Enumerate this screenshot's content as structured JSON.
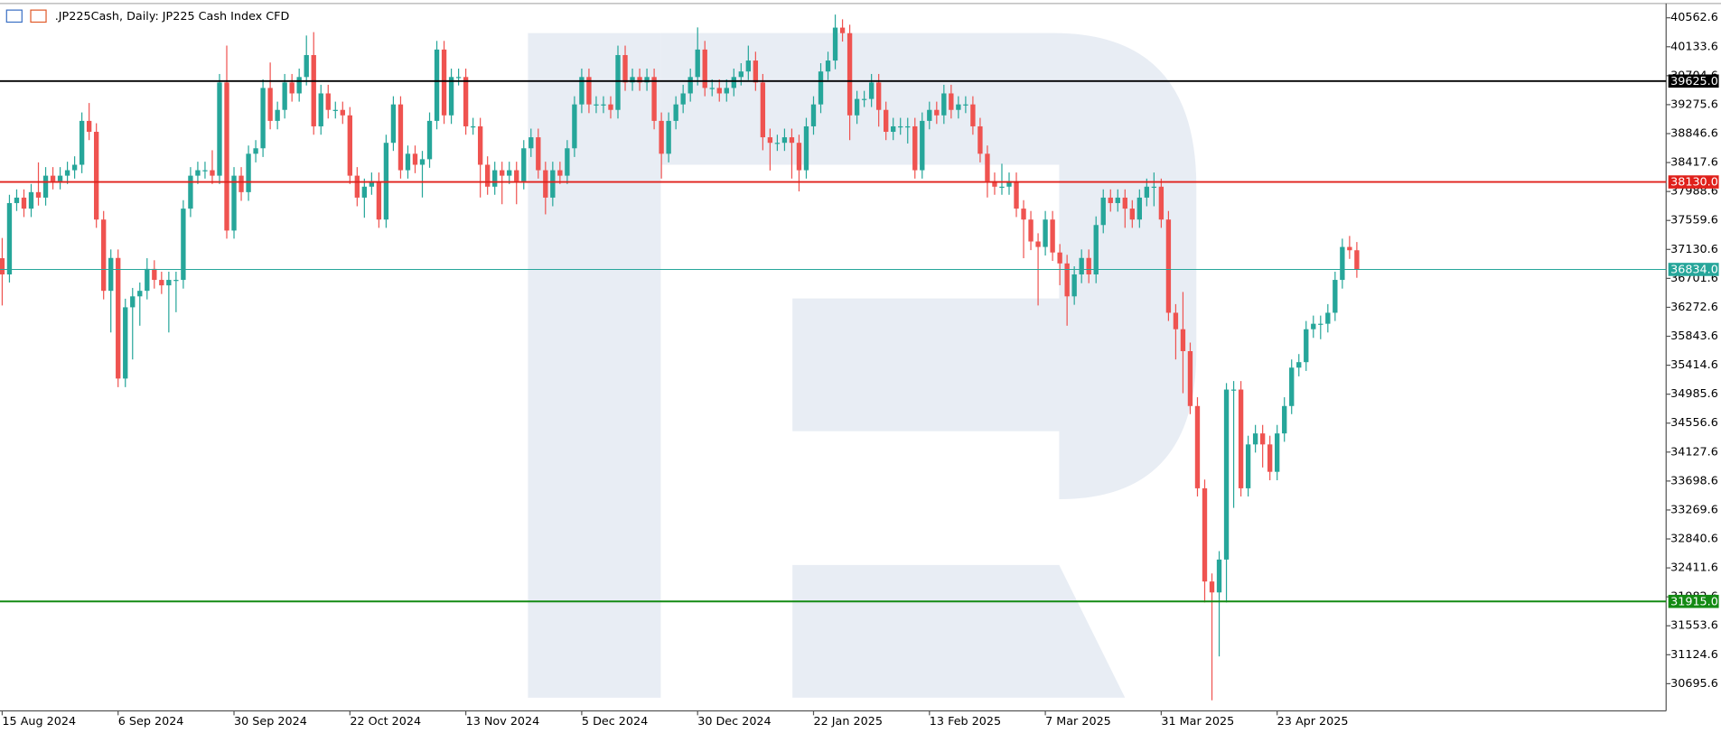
{
  "chart_data": {
    "type": "candlestick",
    "title": ".JP225Cash, Daily:  JP225 Cash Index CFD",
    "categories": [
      "15 Aug 2024",
      null,
      null,
      null,
      null,
      null,
      null,
      null,
      null,
      null,
      null,
      null,
      null,
      null,
      null,
      null,
      "6 Sep 2024",
      null,
      null,
      null,
      null,
      null,
      null,
      null,
      null,
      null,
      null,
      null,
      null,
      null,
      null,
      null,
      "30 Sep 2024",
      null,
      null,
      null,
      null,
      null,
      null,
      null,
      null,
      null,
      null,
      null,
      null,
      null,
      null,
      null,
      "22 Oct 2024",
      null,
      null,
      null,
      null,
      null,
      null,
      null,
      null,
      null,
      null,
      null,
      null,
      null,
      null,
      null,
      "13 Nov 2024",
      null,
      null,
      null,
      null,
      null,
      null,
      null,
      null,
      null,
      null,
      null,
      null,
      null,
      null,
      null,
      "5 Dec 2024",
      null,
      null,
      null,
      null,
      null,
      null,
      null,
      null,
      null,
      null,
      null,
      null,
      null,
      null,
      null,
      "30 Dec 2024",
      null,
      null,
      null,
      null,
      null,
      null,
      null,
      null,
      null,
      null,
      null,
      null,
      null,
      null,
      null,
      "22 Jan 2025",
      null,
      null,
      null,
      null,
      null,
      null,
      null,
      null,
      null,
      null,
      null,
      null,
      null,
      null,
      null,
      "13 Feb 2025",
      null,
      null,
      null,
      null,
      null,
      null,
      null,
      null,
      null,
      null,
      null,
      null,
      null,
      null,
      null,
      "7 Mar 2025",
      null,
      null,
      null,
      null,
      null,
      null,
      null,
      null,
      null,
      null,
      null,
      null,
      null,
      null,
      null,
      "31 Mar 2025",
      null,
      null,
      null,
      null,
      null,
      null,
      null,
      null,
      null,
      null,
      null,
      null,
      null,
      null,
      null,
      "23 Apr 2025",
      null,
      null,
      null,
      null,
      null,
      null,
      null,
      null,
      null,
      null,
      null
    ],
    "open": [
      37000,
      36760,
      37817,
      37898,
      37735,
      37979,
      37898,
      38223,
      38142,
      38223,
      38304,
      38385,
      39035,
      38873,
      37573,
      36517,
      37004,
      35217,
      36273,
      36435,
      36517,
      36842,
      36679,
      36598,
      36679,
      36679,
      37735,
      38223,
      38304,
      38304,
      38223,
      39604,
      37410,
      38223,
      37979,
      38548,
      38629,
      39523,
      39035,
      39198,
      39604,
      39442,
      39685,
      40010,
      38954,
      39442,
      39198,
      39198,
      39117,
      38223,
      37898,
      38060,
      38142,
      37573,
      38710,
      39279,
      38304,
      38548,
      38385,
      38467,
      39035,
      40092,
      39117,
      39685,
      39685,
      38954,
      38954,
      38385,
      38060,
      38304,
      38223,
      38304,
      38142,
      38629,
      38792,
      38304,
      37898,
      38304,
      38223,
      38629,
      39279,
      39685,
      39279,
      39279,
      39279,
      39198,
      40010,
      39604,
      39685,
      39604,
      39685,
      39035,
      38548,
      39035,
      39279,
      39442,
      39685,
      40092,
      39523,
      39523,
      39442,
      39523,
      39685,
      39767,
      39929,
      39604,
      38792,
      38710,
      38710,
      38792,
      38710,
      38304,
      38954,
      39279,
      39767,
      39929,
      40417,
      40335,
      39117,
      39360,
      39360,
      39604,
      39198,
      38873,
      38954,
      38954,
      38954,
      38304,
      39035,
      39198,
      39117,
      39442,
      39198,
      39279,
      39279,
      38954,
      38548,
      38142,
      38060,
      38060,
      38142,
      37735,
      37573,
      37248,
      37167,
      37573,
      37085,
      36923,
      36435,
      36760,
      37004,
      36760,
      37492,
      37898,
      37817,
      37898,
      37735,
      37573,
      37898,
      38060,
      38060,
      37573,
      36192,
      35948,
      35623,
      34810,
      33591,
      32210,
      32048,
      32535,
      35054,
      35054,
      33591,
      34241,
      34404,
      34241,
      33835,
      34404,
      34810,
      35379,
      35460,
      35948,
      36029,
      36029,
      36192,
      36679,
      37167,
      37118
    ],
    "high": [
      37300,
      37940,
      38020,
      38020,
      38100,
      38420,
      38350,
      38350,
      38350,
      38430,
      38510,
      39160,
      39300,
      39000,
      37700,
      37130,
      37130,
      36400,
      36560,
      36640,
      37000,
      36970,
      36800,
      36800,
      36800,
      37860,
      38350,
      38430,
      38430,
      38600,
      39730,
      40150,
      38350,
      38350,
      38670,
      38750,
      39650,
      39900,
      39320,
      39730,
      39730,
      39810,
      40300,
      40350,
      39570,
      39570,
      39320,
      39320,
      39240,
      38350,
      38180,
      38270,
      38270,
      38830,
      39400,
      39400,
      38670,
      38670,
      38590,
      39160,
      40220,
      40220,
      39810,
      39810,
      39810,
      39080,
      39080,
      38510,
      38430,
      38430,
      38430,
      38430,
      38750,
      38920,
      38920,
      38430,
      38430,
      38430,
      38750,
      39400,
      39810,
      39810,
      39400,
      39400,
      39400,
      40150,
      40150,
      39810,
      39810,
      39810,
      39810,
      39160,
      39160,
      39400,
      39570,
      39810,
      40420,
      40220,
      39650,
      39650,
      39650,
      39810,
      39890,
      40150,
      40060,
      39730,
      38920,
      38830,
      38920,
      38920,
      38830,
      39080,
      39400,
      39890,
      40060,
      40610,
      40540,
      40460,
      39480,
      39480,
      39730,
      39730,
      39320,
      39080,
      39080,
      39080,
      39080,
      39160,
      39320,
      39320,
      39570,
      39570,
      39400,
      39400,
      39400,
      39080,
      38670,
      38270,
      38400,
      38270,
      38270,
      37860,
      37700,
      37370,
      37700,
      37700,
      37210,
      37050,
      36880,
      37130,
      37130,
      37620,
      38020,
      38020,
      38020,
      38020,
      37860,
      38020,
      38180,
      38270,
      38180,
      37700,
      36320,
      36500,
      35750,
      34940,
      33720,
      32330,
      32660,
      35150,
      35180,
      35180,
      34370,
      34530,
      34530,
      34370,
      34530,
      34940,
      35500,
      35580,
      36070,
      36150,
      36150,
      36320,
      36800,
      37290,
      37330,
      37240
    ],
    "low": [
      36300,
      36640,
      37700,
      37610,
      37610,
      37780,
      37780,
      38020,
      38020,
      38100,
      38180,
      38260,
      38750,
      37450,
      36390,
      35900,
      35090,
      35090,
      35500,
      36000,
      36390,
      36550,
      36470,
      35900,
      36200,
      36550,
      37610,
      38100,
      38180,
      38100,
      38100,
      37290,
      37290,
      37850,
      37850,
      38420,
      38500,
      38910,
      38910,
      39070,
      39320,
      39320,
      39560,
      38830,
      38830,
      39070,
      39070,
      38990,
      38100,
      37770,
      37600,
      37940,
      37450,
      37450,
      38590,
      38180,
      38180,
      38260,
      37900,
      38340,
      38910,
      38990,
      38990,
      39560,
      38830,
      38830,
      37900,
      37940,
      37940,
      37800,
      38100,
      37800,
      38020,
      38500,
      38180,
      37650,
      37770,
      38100,
      38100,
      38500,
      39150,
      39150,
      39150,
      39150,
      39070,
      39070,
      39480,
      39480,
      39480,
      39480,
      38910,
      38180,
      38420,
      38910,
      39150,
      39320,
      39560,
      39400,
      39400,
      39320,
      39320,
      39400,
      39560,
      39640,
      39480,
      38600,
      38300,
      38590,
      38590,
      38180,
      37990,
      38180,
      38830,
      39150,
      39640,
      39800,
      40210,
      38750,
      38990,
      39240,
      39240,
      38950,
      38750,
      38750,
      38830,
      38700,
      38180,
      38180,
      38910,
      38990,
      38990,
      39070,
      39070,
      39150,
      38830,
      38420,
      37900,
      37940,
      37940,
      37940,
      37610,
      37000,
      37120,
      36300,
      37040,
      36960,
      36600,
      36000,
      36310,
      36630,
      36630,
      36630,
      37370,
      37690,
      37690,
      37450,
      37450,
      37450,
      37770,
      37770,
      37450,
      36070,
      35500,
      35000,
      34690,
      33470,
      31900,
      30450,
      31100,
      31900,
      33300,
      33470,
      33470,
      34120,
      33900,
      33710,
      33710,
      34280,
      34690,
      35250,
      35330,
      35820,
      35800,
      35900,
      36070,
      36550,
      36990,
      36710
    ],
    "close": [
      36760,
      37817,
      37898,
      37735,
      37979,
      37898,
      38223,
      38142,
      38223,
      38304,
      38385,
      39035,
      38873,
      37573,
      36517,
      37004,
      35217,
      36273,
      36435,
      36517,
      36842,
      36679,
      36598,
      36679,
      36679,
      37735,
      38223,
      38304,
      38304,
      38223,
      39604,
      37410,
      38223,
      37979,
      38548,
      38629,
      39523,
      39035,
      39198,
      39604,
      39442,
      39685,
      40010,
      38954,
      39442,
      39198,
      39198,
      39117,
      38223,
      37898,
      38060,
      38142,
      37573,
      38710,
      39279,
      38304,
      38548,
      38385,
      38467,
      39035,
      40092,
      39117,
      39685,
      39685,
      38954,
      38954,
      38385,
      38060,
      38304,
      38223,
      38304,
      38142,
      38629,
      38792,
      38304,
      37898,
      38304,
      38223,
      38629,
      39279,
      39685,
      39279,
      39279,
      39279,
      39198,
      40010,
      39604,
      39685,
      39604,
      39685,
      39035,
      38548,
      39035,
      39279,
      39442,
      39685,
      40092,
      39523,
      39523,
      39442,
      39523,
      39685,
      39767,
      39929,
      39604,
      38792,
      38710,
      38710,
      38792,
      38710,
      38304,
      38954,
      39279,
      39767,
      39929,
      40417,
      40335,
      39117,
      39360,
      39360,
      39604,
      39198,
      38873,
      38954,
      38954,
      38954,
      38304,
      39035,
      39198,
      39117,
      39442,
      39198,
      39279,
      39279,
      38954,
      38548,
      38142,
      38060,
      38060,
      38142,
      37735,
      37573,
      37248,
      37167,
      37573,
      37085,
      36923,
      36435,
      36760,
      37004,
      36760,
      37492,
      37898,
      37817,
      37898,
      37735,
      37573,
      37898,
      38060,
      38060,
      37573,
      36192,
      35948,
      35623,
      34810,
      33591,
      32210,
      32048,
      32535,
      35054,
      35054,
      33591,
      34241,
      34404,
      34241,
      33835,
      34404,
      34810,
      35379,
      35460,
      35948,
      36029,
      36029,
      36192,
      36679,
      37167,
      37118,
      36834
    ],
    "up_color": "#26a69a",
    "down_color": "#ef5350",
    "ylim": [
      30293,
      40742
    ],
    "yticks": [
      40562.6,
      40133.6,
      39704.6,
      39275.6,
      38846.6,
      38417.6,
      37988.6,
      37559.6,
      37130.6,
      36701.6,
      36272.6,
      35843.6,
      35414.6,
      34985.6,
      34556.6,
      34127.6,
      33698.6,
      33269.6,
      32840.6,
      32411.6,
      31982.6,
      31553.6,
      31124.6,
      30695.6
    ],
    "levels": [
      {
        "value": 39625,
        "label": "39625.0",
        "color": "#000000"
      },
      {
        "value": 38130,
        "label": "38130.0",
        "color": "#e0201b"
      },
      {
        "value": 36834,
        "label": "36834.0",
        "color": "#26a69a"
      },
      {
        "value": 31915,
        "label": "31915.0",
        "color": "#138a13"
      }
    ]
  }
}
